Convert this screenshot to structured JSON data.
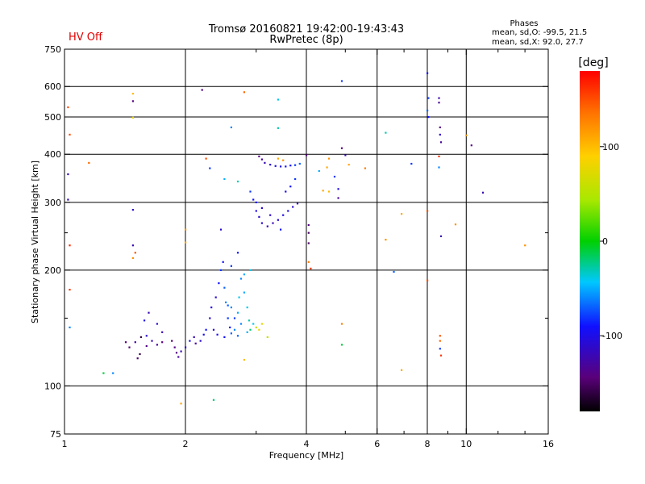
{
  "header": {
    "status": "HV Off",
    "title": "Tromsø 20160821 19:42:00-19:43:43",
    "subtitle": "RwPretec (8p)",
    "phases_title": "Phases",
    "phases_o": "mean, sd,O: -99.5, 21.5",
    "phases_x": "mean, sd,X:  92.0, 27.7"
  },
  "colors": {
    "status": "#e00000",
    "grid": "#000000"
  },
  "colorbar": {
    "label": "[deg]",
    "ticks": [
      {
        "value": 100,
        "label": "100"
      },
      {
        "value": 0,
        "label": "0"
      },
      {
        "value": -100,
        "label": "-100"
      }
    ],
    "range": [
      -180,
      180
    ]
  },
  "chart_data": {
    "type": "scatter",
    "title": "Tromsø 20160821 19:42:00-19:43:43",
    "subtitle": "RwPretec (8p)",
    "xlabel": "Frequency [MHz]",
    "ylabel": "Stationary phase Virtual Height [km]",
    "xscale": "log",
    "yscale": "log",
    "xlim": [
      1,
      16
    ],
    "ylim": [
      75,
      750
    ],
    "grid": true,
    "xticks": [
      {
        "v": 1,
        "label": "1"
      },
      {
        "v": 2,
        "label": "2"
      },
      {
        "v": 4,
        "label": "4"
      },
      {
        "v": 6,
        "label": "6"
      },
      {
        "v": 8,
        "label": "8"
      },
      {
        "v": 10,
        "label": "10"
      },
      {
        "v": 16,
        "label": "16"
      }
    ],
    "xgrid": [
      2,
      4,
      6,
      8,
      10
    ],
    "xminor": [
      3,
      5,
      7,
      9,
      12,
      14
    ],
    "yticks": [
      {
        "v": 75,
        "label": "75"
      },
      {
        "v": 100,
        "label": "100"
      },
      {
        "v": 200,
        "label": "200"
      },
      {
        "v": 300,
        "label": "300"
      },
      {
        "v": 400,
        "label": "400"
      },
      {
        "v": 500,
        "label": "500"
      },
      {
        "v": 600,
        "label": "600"
      },
      {
        "v": 750,
        "label": "750"
      }
    ],
    "ygrid": [
      100,
      200,
      300,
      400,
      500,
      600
    ],
    "yminor": [
      150,
      250
    ],
    "points": [
      [
        1.02,
        530,
        150
      ],
      [
        1.03,
        450,
        150
      ],
      [
        1.02,
        355,
        -120
      ],
      [
        1.02,
        305,
        -120
      ],
      [
        1.03,
        232,
        165
      ],
      [
        1.03,
        178,
        160
      ],
      [
        1.03,
        142,
        -60
      ],
      [
        1.15,
        380,
        140
      ],
      [
        1.48,
        575,
        100
      ],
      [
        1.48,
        550,
        -140
      ],
      [
        1.48,
        498,
        80
      ],
      [
        1.48,
        287,
        -110
      ],
      [
        1.48,
        232,
        -120
      ],
      [
        1.5,
        222,
        150
      ],
      [
        1.48,
        215,
        120
      ],
      [
        1.25,
        108,
        -10
      ],
      [
        1.32,
        108,
        -60
      ],
      [
        2.2,
        588,
        -140
      ],
      [
        2.8,
        580,
        140
      ],
      [
        2.25,
        390,
        150
      ],
      [
        1.95,
        90,
        110
      ],
      [
        2.35,
        92,
        -20
      ],
      [
        2.3,
        368,
        -80
      ],
      [
        2.5,
        345,
        -50
      ],
      [
        2.7,
        340,
        -30
      ],
      [
        2.6,
        470,
        -60
      ],
      [
        3.4,
        555,
        -40
      ],
      [
        3.4,
        468,
        -30
      ],
      [
        4.9,
        620,
        -80
      ],
      [
        2.0,
        255,
        120
      ],
      [
        2.0,
        236,
        110
      ],
      [
        2.8,
        117,
        100
      ],
      [
        3.2,
        134,
        60
      ],
      [
        1.62,
        155,
        -120
      ],
      [
        1.7,
        145,
        -110
      ],
      [
        1.75,
        138,
        -120
      ],
      [
        1.42,
        130,
        -140
      ],
      [
        1.45,
        126,
        -150
      ],
      [
        1.5,
        130,
        -130
      ],
      [
        1.55,
        134,
        -160
      ],
      [
        1.6,
        127,
        -140
      ],
      [
        1.52,
        118,
        -150
      ],
      [
        1.54,
        121,
        -160
      ],
      [
        1.58,
        148,
        -100
      ],
      [
        1.6,
        135,
        -110
      ],
      [
        1.65,
        131,
        -120
      ],
      [
        1.7,
        128,
        -130
      ],
      [
        1.75,
        130,
        -140
      ],
      [
        1.85,
        131,
        -150
      ],
      [
        1.88,
        126,
        -140
      ],
      [
        1.9,
        122,
        -140
      ],
      [
        1.92,
        119,
        -130
      ],
      [
        1.95,
        123,
        -120
      ],
      [
        2.0,
        126,
        -110
      ],
      [
        2.05,
        131,
        -100
      ],
      [
        2.1,
        134,
        -120
      ],
      [
        2.12,
        129,
        -130
      ],
      [
        2.18,
        131,
        -110
      ],
      [
        2.22,
        136,
        -100
      ],
      [
        2.25,
        140,
        -90
      ],
      [
        2.3,
        150,
        -110
      ],
      [
        2.32,
        160,
        -100
      ],
      [
        2.38,
        170,
        -110
      ],
      [
        2.42,
        185,
        -90
      ],
      [
        2.45,
        200,
        -80
      ],
      [
        2.48,
        210,
        -90
      ],
      [
        2.5,
        180,
        -70
      ],
      [
        2.52,
        165,
        -60
      ],
      [
        2.55,
        150,
        -80
      ],
      [
        2.58,
        142,
        -90
      ],
      [
        2.6,
        137,
        -70
      ],
      [
        2.65,
        140,
        -60
      ],
      [
        2.7,
        155,
        -50
      ],
      [
        2.72,
        170,
        -40
      ],
      [
        2.75,
        190,
        -60
      ],
      [
        2.8,
        175,
        -50
      ],
      [
        2.85,
        160,
        -40
      ],
      [
        2.88,
        148,
        -30
      ],
      [
        2.9,
        140,
        -20
      ],
      [
        2.95,
        145,
        -40
      ],
      [
        2.6,
        205,
        -80
      ],
      [
        2.7,
        222,
        -90
      ],
      [
        2.45,
        255,
        -110
      ],
      [
        2.55,
        162,
        -70
      ],
      [
        2.65,
        150,
        -80
      ],
      [
        2.75,
        145,
        -60
      ],
      [
        2.85,
        138,
        -50
      ],
      [
        2.35,
        140,
        -110
      ],
      [
        2.4,
        136,
        -100
      ],
      [
        2.5,
        134,
        -90
      ],
      [
        2.6,
        160,
        -60
      ],
      [
        2.7,
        135,
        -70
      ],
      [
        2.8,
        195,
        -50
      ],
      [
        2.9,
        200,
        -40
      ],
      [
        3.0,
        142,
        60
      ],
      [
        3.05,
        140,
        80
      ],
      [
        3.1,
        145,
        80
      ],
      [
        2.9,
        320,
        -80
      ],
      [
        2.95,
        305,
        -90
      ],
      [
        3.0,
        285,
        -100
      ],
      [
        3.05,
        275,
        -110
      ],
      [
        3.1,
        265,
        -110
      ],
      [
        3.2,
        260,
        -120
      ],
      [
        3.3,
        265,
        -120
      ],
      [
        3.4,
        270,
        -110
      ],
      [
        3.5,
        278,
        -100
      ],
      [
        3.6,
        285,
        -100
      ],
      [
        3.7,
        292,
        -110
      ],
      [
        3.8,
        298,
        -120
      ],
      [
        3.0,
        300,
        -100
      ],
      [
        3.1,
        290,
        -110
      ],
      [
        3.25,
        278,
        -110
      ],
      [
        3.45,
        255,
        -90
      ],
      [
        3.55,
        320,
        -100
      ],
      [
        3.65,
        330,
        -90
      ],
      [
        3.75,
        345,
        -80
      ],
      [
        3.05,
        395,
        -140
      ],
      [
        3.1,
        388,
        -130
      ],
      [
        3.15,
        380,
        -120
      ],
      [
        3.25,
        376,
        -110
      ],
      [
        3.35,
        373,
        -100
      ],
      [
        3.45,
        372,
        -100
      ],
      [
        3.55,
        372,
        -90
      ],
      [
        3.65,
        374,
        -90
      ],
      [
        3.75,
        375,
        -80
      ],
      [
        3.85,
        378,
        -70
      ],
      [
        3.4,
        390,
        110
      ],
      [
        3.5,
        386,
        120
      ],
      [
        4.0,
        398,
        -140
      ],
      [
        4.05,
        262,
        -140
      ],
      [
        4.05,
        250,
        -150
      ],
      [
        4.05,
        235,
        -150
      ],
      [
        4.05,
        210,
        130
      ],
      [
        4.1,
        202,
        160
      ],
      [
        4.3,
        362,
        -50
      ],
      [
        4.4,
        322,
        110
      ],
      [
        4.55,
        320,
        100
      ],
      [
        4.5,
        370,
        110
      ],
      [
        4.7,
        350,
        -80
      ],
      [
        4.8,
        308,
        -130
      ],
      [
        4.8,
        325,
        -100
      ],
      [
        4.55,
        390,
        120
      ],
      [
        4.9,
        415,
        -140
      ],
      [
        5.0,
        398,
        -120
      ],
      [
        5.1,
        376,
        110
      ],
      [
        5.6,
        368,
        130
      ],
      [
        4.9,
        145,
        130
      ],
      [
        4.9,
        128,
        -10
      ],
      [
        6.3,
        455,
        -30
      ],
      [
        6.3,
        240,
        120
      ],
      [
        6.6,
        198,
        -70
      ],
      [
        6.9,
        280,
        110
      ],
      [
        6.9,
        110,
        110
      ],
      [
        7.3,
        378,
        -80
      ],
      [
        8.0,
        650,
        -90
      ],
      [
        8.05,
        560,
        -80
      ],
      [
        8.0,
        520,
        -70
      ],
      [
        8.05,
        500,
        -90
      ],
      [
        8.0,
        285,
        150
      ],
      [
        8.0,
        188,
        150
      ],
      [
        8.55,
        560,
        -120
      ],
      [
        8.55,
        545,
        -130
      ],
      [
        8.6,
        470,
        -140
      ],
      [
        8.6,
        450,
        -110
      ],
      [
        8.65,
        430,
        -130
      ],
      [
        8.55,
        395,
        160
      ],
      [
        8.55,
        370,
        -60
      ],
      [
        8.65,
        245,
        -120
      ],
      [
        8.6,
        135,
        150
      ],
      [
        8.6,
        131,
        140
      ],
      [
        8.6,
        125,
        -80
      ],
      [
        8.65,
        120,
        160
      ],
      [
        9.4,
        263,
        120
      ],
      [
        10.0,
        448,
        120
      ],
      [
        10.3,
        422,
        -140
      ],
      [
        11.0,
        318,
        -120
      ],
      [
        14.0,
        232,
        120
      ]
    ]
  }
}
